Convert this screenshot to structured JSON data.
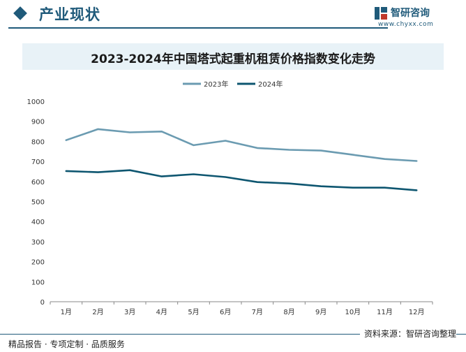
{
  "header": {
    "section_title": "产业现状",
    "logo_name": "智研咨询",
    "logo_url": "www.chyxx.com"
  },
  "footer": {
    "left": "精品报告 · 专项定制 · 品质服务",
    "right": "资料来源：智研咨询整理"
  },
  "colors": {
    "brand": "#1f5a7a",
    "series_2023": "#6b9bb1",
    "series_2024": "#0e5670"
  },
  "chart_data": {
    "type": "line",
    "title": "2023-2024年中国塔式起重机租赁价格指数变化走势",
    "x": [
      "1月",
      "2月",
      "3月",
      "4月",
      "5月",
      "6月",
      "7月",
      "8月",
      "9月",
      "10月",
      "11月",
      "12月"
    ],
    "yticks": [
      "0",
      "100",
      "200",
      "300",
      "400",
      "500",
      "600",
      "700",
      "800",
      "900",
      "1000"
    ],
    "ylim": [
      0,
      1000
    ],
    "grid": false,
    "legend": "top-center",
    "series": [
      {
        "name": "2023年",
        "values": [
          806,
          861,
          845,
          849,
          781,
          803,
          767,
          758,
          754,
          733,
          712,
          702
        ]
      },
      {
        "name": "2024年",
        "values": [
          652,
          646,
          656,
          625,
          636,
          622,
          597,
          590,
          576,
          569,
          569,
          556
        ]
      }
    ]
  }
}
